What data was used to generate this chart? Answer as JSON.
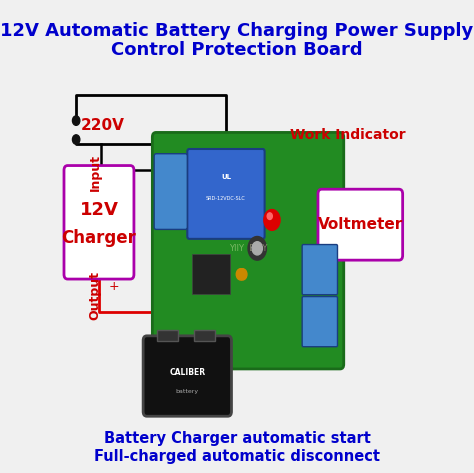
{
  "title_line1": "12V Automatic Battery Charging Power Supply",
  "title_line2": "Control Protection Board",
  "title_color": "#0000cc",
  "title_fontsize": 13,
  "bg_color": "#f0f0f0",
  "label_220v": "220V",
  "label_input": "Input",
  "label_output": "Output",
  "label_charger_line1": "12V",
  "label_charger_line2": "Charger",
  "label_voltmeter": "Voltmeter",
  "label_work_indicator": "Work Indicator",
  "label_bottom1": "Battery Charger automatic start",
  "label_bottom2": "Full-charged automatic disconnect",
  "label_color_red": "#cc0000",
  "label_color_purple": "#880088",
  "board_color": "#228B22",
  "relay_color": "#3366cc",
  "connector_color": "#4488cc"
}
